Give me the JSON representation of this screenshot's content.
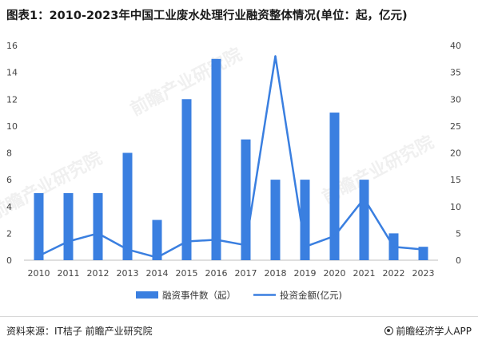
{
  "title": "图表1：2010-2023年中国工业废水处理行业融资整体情况(单位：起，亿元)",
  "footer": {
    "source": "资料来源：IT桔子 前瞻产业研究院",
    "brand": "前瞻经济学人APP"
  },
  "watermark": {
    "text": "前瞻产业研究院"
  },
  "colors": {
    "bar": "#3a7fe0",
    "line": "#3a7fe0"
  },
  "chart_data": {
    "type": "bar",
    "categories": [
      "2010",
      "2011",
      "2012",
      "2013",
      "2014",
      "2015",
      "2016",
      "2017",
      "2018",
      "2019",
      "2020",
      "2021",
      "2022",
      "2023"
    ],
    "series": [
      {
        "name": "融资事件数（起）",
        "type": "bar",
        "axis": "left",
        "values": [
          5,
          5,
          5,
          8,
          3,
          12,
          15,
          9,
          6,
          6,
          11,
          6,
          2,
          1
        ]
      },
      {
        "name": "投资金额(亿元)",
        "type": "line",
        "axis": "right",
        "values": [
          0.8,
          3.5,
          5,
          2,
          0.5,
          3.5,
          3.8,
          2.8,
          38,
          2.5,
          4.5,
          11.5,
          2.5,
          2
        ]
      }
    ],
    "y_left": {
      "min": 0,
      "max": 16,
      "ticks": [
        "0",
        "2",
        "4",
        "6",
        "8",
        "10",
        "12",
        "14",
        "16"
      ]
    },
    "y_right": {
      "min": 0,
      "max": 40,
      "ticks": [
        "0",
        "5",
        "10",
        "15",
        "20",
        "25",
        "30",
        "35",
        "40"
      ]
    },
    "grid": false,
    "legend_position": "bottom"
  }
}
